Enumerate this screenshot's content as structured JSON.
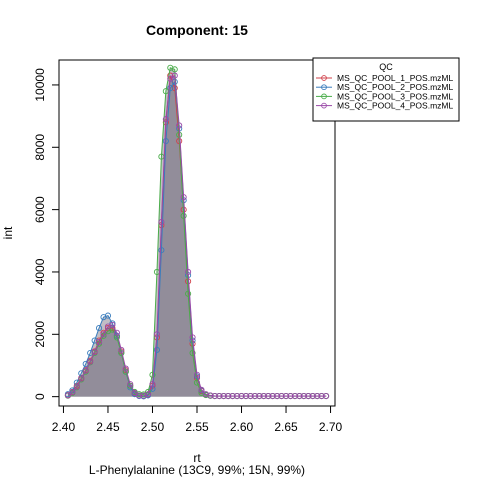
{
  "chart_data": {
    "type": "line",
    "title": "Component: 15",
    "xlabel": "rt",
    "ylabel": "int",
    "caption": "L-Phenylalanine (13C9, 99%; 15N, 99%)",
    "xlim": [
      2.395,
      2.705
    ],
    "ylim": [
      -300,
      10800
    ],
    "x_ticks": [
      2.4,
      2.45,
      2.5,
      2.55,
      2.6,
      2.65,
      2.7
    ],
    "x_tick_labels": [
      "2.40",
      "2.45",
      "2.50",
      "2.55",
      "2.60",
      "2.65",
      "2.70"
    ],
    "y_ticks": [
      0,
      2000,
      4000,
      6000,
      8000,
      10000
    ],
    "y_tick_labels": [
      "0",
      "2000",
      "4000",
      "6000",
      "8000",
      "10000"
    ],
    "grid": false,
    "legend": {
      "title": "QC",
      "placement": "top-right",
      "entries": [
        "MS_QC_POOL_1_POS.mzML",
        "MS_QC_POOL_2_POS.mzML",
        "MS_QC_POOL_3_POS.mzML",
        "MS_QC_POOL_4_POS.mzML"
      ]
    },
    "fill_color": "#8e8896",
    "series": [
      {
        "name": "MS_QC_POOL_1_POS.mzML",
        "color": "#d0404a",
        "marker": "circle",
        "x": [
          2.405,
          2.41,
          2.415,
          2.42,
          2.425,
          2.43,
          2.435,
          2.44,
          2.445,
          2.45,
          2.455,
          2.46,
          2.465,
          2.47,
          2.475,
          2.48,
          2.485,
          2.49,
          2.495,
          2.5,
          2.505,
          2.51,
          2.515,
          2.52,
          2.525,
          2.53,
          2.535,
          2.54,
          2.545,
          2.55,
          2.555,
          2.56,
          2.565,
          2.57,
          2.575,
          2.58,
          2.585,
          2.59,
          2.595,
          2.6,
          2.605,
          2.61,
          2.615,
          2.62,
          2.625,
          2.63,
          2.635,
          2.64,
          2.645,
          2.65,
          2.655,
          2.66,
          2.665,
          2.67,
          2.675,
          2.68,
          2.685,
          2.69,
          2.695
        ],
        "y": [
          50,
          150,
          350,
          600,
          850,
          1150,
          1450,
          1800,
          2050,
          2200,
          2200,
          1950,
          1450,
          850,
          350,
          100,
          30,
          20,
          60,
          350,
          1900,
          5500,
          8800,
          10300,
          9900,
          8200,
          6000,
          3700,
          1700,
          600,
          180,
          60,
          30,
          20,
          20,
          20,
          20,
          20,
          20,
          20,
          20,
          20,
          20,
          20,
          20,
          20,
          20,
          20,
          20,
          20,
          20,
          20,
          20,
          20,
          20,
          20,
          20,
          20,
          20
        ]
      },
      {
        "name": "MS_QC_POOL_2_POS.mzML",
        "color": "#3a7dbd",
        "marker": "circle",
        "x": [
          2.405,
          2.41,
          2.415,
          2.42,
          2.425,
          2.43,
          2.435,
          2.44,
          2.445,
          2.45,
          2.455,
          2.46,
          2.465,
          2.47,
          2.475,
          2.48,
          2.485,
          2.49,
          2.495,
          2.5,
          2.505,
          2.51,
          2.515,
          2.52,
          2.525,
          2.53,
          2.535,
          2.54,
          2.545,
          2.55,
          2.555,
          2.56,
          2.565,
          2.57,
          2.575,
          2.58,
          2.585,
          2.59,
          2.595,
          2.6,
          2.605,
          2.61,
          2.615,
          2.62,
          2.625,
          2.63,
          2.635,
          2.64,
          2.645,
          2.65,
          2.655,
          2.66,
          2.665,
          2.67,
          2.675,
          2.68,
          2.685,
          2.69,
          2.695
        ],
        "y": [
          80,
          200,
          450,
          750,
          1050,
          1400,
          1800,
          2200,
          2550,
          2600,
          2350,
          1950,
          1400,
          800,
          300,
          80,
          20,
          10,
          40,
          250,
          1500,
          4700,
          8200,
          9900,
          10100,
          8600,
          6300,
          3900,
          1800,
          650,
          200,
          70,
          30,
          20,
          20,
          20,
          20,
          20,
          20,
          20,
          20,
          20,
          20,
          20,
          20,
          20,
          20,
          20,
          20,
          20,
          20,
          20,
          20,
          20,
          20,
          20,
          20,
          20,
          20
        ]
      },
      {
        "name": "MS_QC_POOL_3_POS.mzML",
        "color": "#4aad4a",
        "marker": "circle",
        "x": [
          2.405,
          2.41,
          2.415,
          2.42,
          2.425,
          2.43,
          2.435,
          2.44,
          2.445,
          2.45,
          2.455,
          2.46,
          2.465,
          2.47,
          2.475,
          2.48,
          2.485,
          2.49,
          2.495,
          2.5,
          2.505,
          2.51,
          2.515,
          2.52,
          2.525,
          2.53,
          2.535,
          2.54,
          2.545,
          2.55,
          2.555,
          2.56,
          2.565,
          2.57,
          2.575,
          2.58,
          2.585,
          2.59,
          2.595,
          2.6,
          2.605,
          2.61,
          2.615,
          2.62,
          2.625,
          2.63,
          2.635,
          2.64,
          2.645,
          2.65,
          2.655,
          2.66,
          2.665,
          2.67,
          2.675,
          2.68,
          2.685,
          2.69,
          2.695
        ],
        "y": [
          30,
          120,
          300,
          550,
          800,
          1100,
          1400,
          1700,
          1950,
          2100,
          2150,
          1900,
          1400,
          800,
          350,
          150,
          80,
          70,
          150,
          700,
          4000,
          7700,
          9800,
          10550,
          10500,
          8400,
          5800,
          3300,
          1400,
          450,
          120,
          50,
          30,
          20,
          20,
          20,
          20,
          20,
          20,
          20,
          20,
          20,
          20,
          20,
          20,
          20,
          20,
          20,
          20,
          20,
          20,
          20,
          20,
          20,
          20,
          20,
          20,
          20,
          20
        ]
      },
      {
        "name": "MS_QC_POOL_4_POS.mzML",
        "color": "#9a4aa8",
        "marker": "circle",
        "x": [
          2.405,
          2.41,
          2.415,
          2.42,
          2.425,
          2.43,
          2.435,
          2.44,
          2.445,
          2.45,
          2.455,
          2.46,
          2.465,
          2.47,
          2.475,
          2.48,
          2.485,
          2.49,
          2.495,
          2.5,
          2.505,
          2.51,
          2.515,
          2.52,
          2.525,
          2.53,
          2.535,
          2.54,
          2.545,
          2.55,
          2.555,
          2.56,
          2.565,
          2.57,
          2.575,
          2.58,
          2.585,
          2.59,
          2.595,
          2.6,
          2.605,
          2.61,
          2.615,
          2.62,
          2.625,
          2.63,
          2.635,
          2.64,
          2.645,
          2.65,
          2.655,
          2.66,
          2.665,
          2.67,
          2.675,
          2.68,
          2.685,
          2.69,
          2.695
        ],
        "y": [
          40,
          140,
          320,
          580,
          830,
          1120,
          1430,
          1750,
          2000,
          2250,
          2300,
          2050,
          1500,
          900,
          400,
          120,
          40,
          30,
          80,
          400,
          2000,
          5600,
          8900,
          10200,
          10300,
          8700,
          6400,
          4000,
          1900,
          700,
          220,
          80,
          40,
          20,
          20,
          20,
          20,
          20,
          20,
          20,
          20,
          20,
          20,
          20,
          20,
          20,
          20,
          20,
          20,
          20,
          20,
          20,
          20,
          20,
          20,
          20,
          20,
          20,
          20
        ]
      }
    ]
  }
}
